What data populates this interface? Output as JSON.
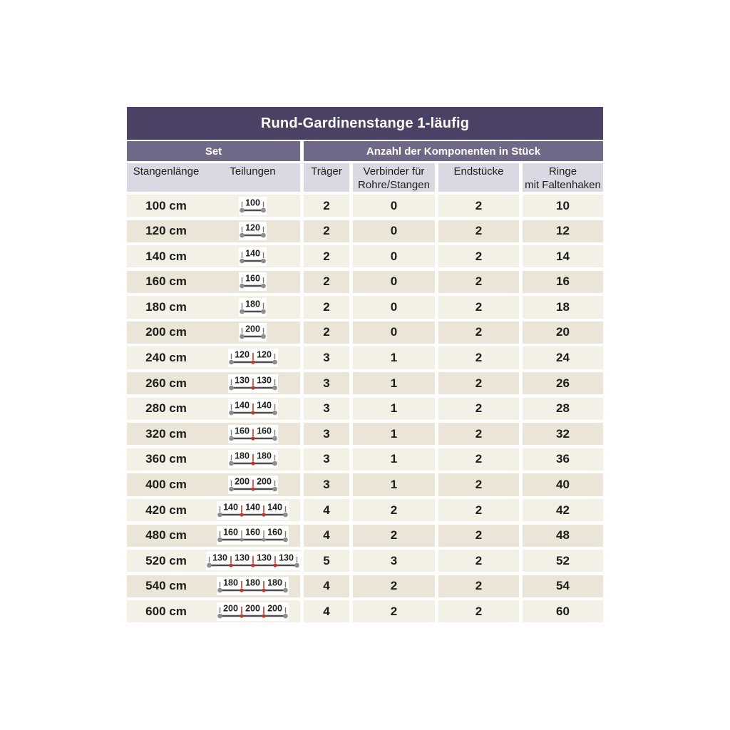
{
  "colors": {
    "title_bg": "#4a4164",
    "group_bg": "#6f6987",
    "colhead_bg": "#dad8e2",
    "row_light": "#f3f0e5",
    "row_dark": "#eae5d6",
    "text": "#1d1d1b",
    "connector_red": "#c4352c",
    "connector_gray": "#8d8d8d",
    "rod": "#4d4d4d",
    "cap": "#8d8d8d",
    "tick": "#777777",
    "badge_bg": "#ffffff"
  },
  "header": {
    "title": "Rund-Gardinenstange 1-läufig"
  },
  "group_headers": {
    "set": "Set",
    "components": "Anzahl der Komponenten in Stück"
  },
  "columns": {
    "c1": "Stangenlänge",
    "c2": "Teilungen",
    "c3": "Träger",
    "c4_line1": "Verbinder für",
    "c4_line2": "Rohre/Stangen",
    "c5": "Endstücke",
    "c6_line1": "Ringe",
    "c6_line2": "mit Faltenhaken"
  },
  "chart_data": {
    "type": "table",
    "title": "Rund-Gardinenstange 1-läufig",
    "column_groups": [
      "Set",
      "Anzahl der Komponenten in Stück"
    ],
    "columns": [
      "Stangenlänge",
      "Teilungen",
      "Träger",
      "Verbinder für Rohre/Stangen",
      "Endstücke",
      "Ringe mit Faltenhaken"
    ],
    "rows": [
      {
        "stangenlaenge": "100 cm",
        "teilungen_segments": [
          100
        ],
        "connector_color": null,
        "traeger": 2,
        "verbinder": 0,
        "endstuecke": 2,
        "ringe": 10
      },
      {
        "stangenlaenge": "120 cm",
        "teilungen_segments": [
          120
        ],
        "connector_color": null,
        "traeger": 2,
        "verbinder": 0,
        "endstuecke": 2,
        "ringe": 12
      },
      {
        "stangenlaenge": "140 cm",
        "teilungen_segments": [
          140
        ],
        "connector_color": null,
        "traeger": 2,
        "verbinder": 0,
        "endstuecke": 2,
        "ringe": 14
      },
      {
        "stangenlaenge": "160 cm",
        "teilungen_segments": [
          160
        ],
        "connector_color": null,
        "traeger": 2,
        "verbinder": 0,
        "endstuecke": 2,
        "ringe": 16
      },
      {
        "stangenlaenge": "180 cm",
        "teilungen_segments": [
          180
        ],
        "connector_color": null,
        "traeger": 2,
        "verbinder": 0,
        "endstuecke": 2,
        "ringe": 18
      },
      {
        "stangenlaenge": "200 cm",
        "teilungen_segments": [
          200
        ],
        "connector_color": null,
        "traeger": 2,
        "verbinder": 0,
        "endstuecke": 2,
        "ringe": 20
      },
      {
        "stangenlaenge": "240 cm",
        "teilungen_segments": [
          120,
          120
        ],
        "connector_color": "red",
        "traeger": 3,
        "verbinder": 1,
        "endstuecke": 2,
        "ringe": 24
      },
      {
        "stangenlaenge": "260 cm",
        "teilungen_segments": [
          130,
          130
        ],
        "connector_color": "red",
        "traeger": 3,
        "verbinder": 1,
        "endstuecke": 2,
        "ringe": 26
      },
      {
        "stangenlaenge": "280 cm",
        "teilungen_segments": [
          140,
          140
        ],
        "connector_color": "red",
        "traeger": 3,
        "verbinder": 1,
        "endstuecke": 2,
        "ringe": 28
      },
      {
        "stangenlaenge": "320 cm",
        "teilungen_segments": [
          160,
          160
        ],
        "connector_color": "red",
        "traeger": 3,
        "verbinder": 1,
        "endstuecke": 2,
        "ringe": 32
      },
      {
        "stangenlaenge": "360 cm",
        "teilungen_segments": [
          180,
          180
        ],
        "connector_color": "red",
        "traeger": 3,
        "verbinder": 1,
        "endstuecke": 2,
        "ringe": 36
      },
      {
        "stangenlaenge": "400 cm",
        "teilungen_segments": [
          200,
          200
        ],
        "connector_color": "red",
        "traeger": 3,
        "verbinder": 1,
        "endstuecke": 2,
        "ringe": 40
      },
      {
        "stangenlaenge": "420 cm",
        "teilungen_segments": [
          140,
          140,
          140
        ],
        "connector_color": "red",
        "traeger": 4,
        "verbinder": 2,
        "endstuecke": 2,
        "ringe": 42
      },
      {
        "stangenlaenge": "480 cm",
        "teilungen_segments": [
          160,
          160,
          160
        ],
        "connector_color": "gray",
        "traeger": 4,
        "verbinder": 2,
        "endstuecke": 2,
        "ringe": 48
      },
      {
        "stangenlaenge": "520 cm",
        "teilungen_segments": [
          130,
          130,
          130,
          130
        ],
        "connector_color": "red",
        "traeger": 5,
        "verbinder": 3,
        "endstuecke": 2,
        "ringe": 52
      },
      {
        "stangenlaenge": "540 cm",
        "teilungen_segments": [
          180,
          180,
          180
        ],
        "connector_color": "red",
        "traeger": 4,
        "verbinder": 2,
        "endstuecke": 2,
        "ringe": 54
      },
      {
        "stangenlaenge": "600 cm",
        "teilungen_segments": [
          200,
          200,
          200
        ],
        "connector_color": "red",
        "traeger": 4,
        "verbinder": 2,
        "endstuecke": 2,
        "ringe": 60
      }
    ]
  }
}
